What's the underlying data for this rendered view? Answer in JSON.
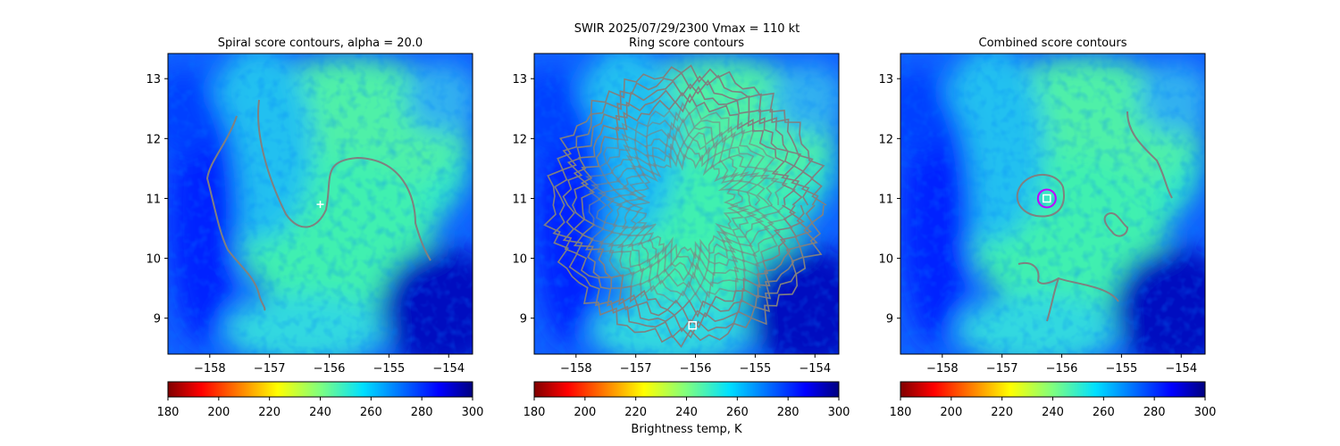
{
  "chart_data": {
    "type": "heatmap",
    "suptitle": "SWIR  2025/07/29/2300    Vmax = 110 kt",
    "xlim": [
      -158.7,
      -153.6
    ],
    "ylim": [
      8.4,
      13.42
    ],
    "xticks": [
      -158,
      -157,
      -156,
      -155,
      -154
    ],
    "xtick_labels": [
      "−158",
      "−157",
      "−156",
      "−155",
      "−154"
    ],
    "yticks": [
      9,
      10,
      11,
      12,
      13
    ],
    "ytick_labels": [
      "9",
      "10",
      "11",
      "12",
      "13"
    ],
    "colorbar": {
      "cmap": "jet_r",
      "range": [
        180,
        300
      ],
      "ticks": [
        "180",
        "200",
        "220",
        "240",
        "260",
        "280",
        "300"
      ],
      "label": "Brightness temp, K"
    },
    "panels": [
      {
        "title": "Spiral score contours, alpha = 20.0",
        "marker": {
          "type": "plus",
          "lon": -156.15,
          "lat": 10.9
        }
      },
      {
        "title": "Ring score contours",
        "marker": {
          "type": "square",
          "lon": -156.05,
          "lat": 8.88
        }
      },
      {
        "title": "Combined score contours",
        "marker": {
          "type": "square-circle",
          "lon": -156.25,
          "lat": 11.0
        }
      }
    ],
    "contour_color": "#808080"
  }
}
